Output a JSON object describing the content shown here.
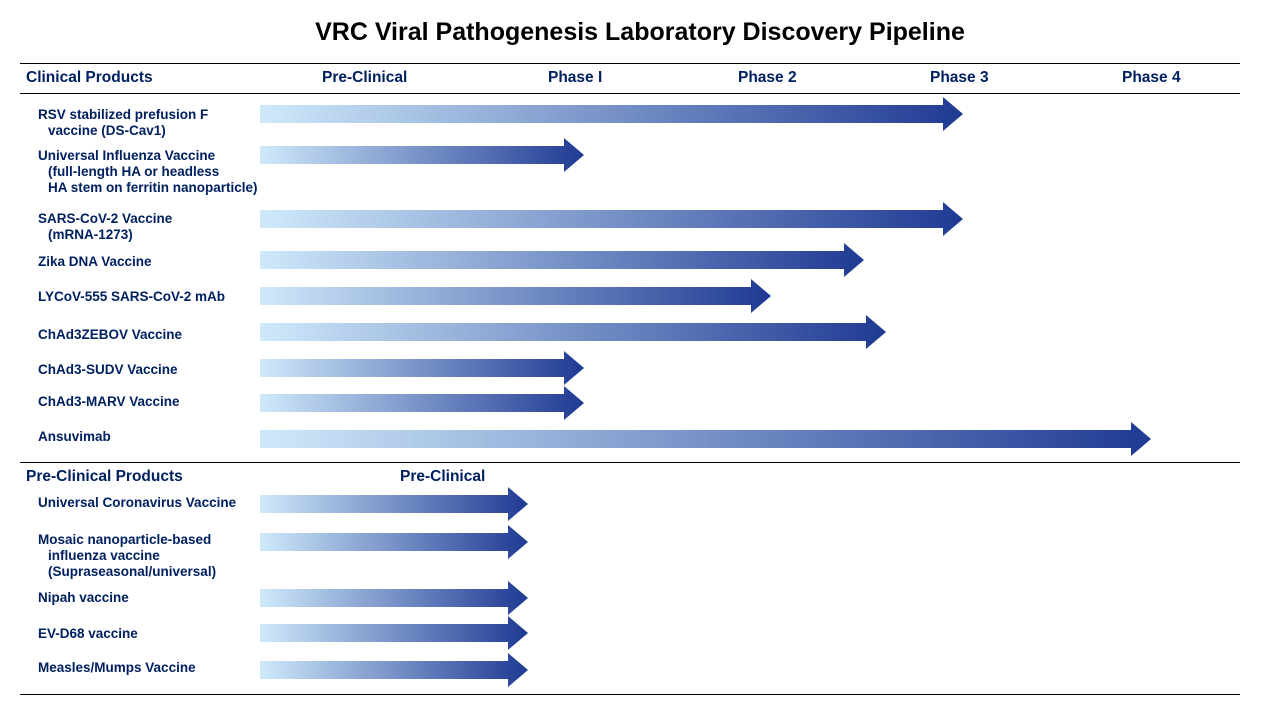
{
  "title": "VRC Viral Pathogenesis Laboratory Discovery Pipeline",
  "colors": {
    "arrow_start": "#cfe9fb",
    "arrow_end": "#1f3a93",
    "text": "#002060"
  },
  "clinical_header": {
    "products": "Clinical  Products",
    "phases": [
      "Pre-Clinical",
      "Phase  I",
      "Phase  2",
      "Phase  3",
      "Phase  4"
    ]
  },
  "clinical_products": [
    {
      "lines": [
        "RSV stabilized prefusion F",
        "vaccine (DS-Cav1)"
      ],
      "stage": "Phase 3"
    },
    {
      "lines": [
        "Universal Influenza Vaccine",
        "(full-length HA or headless",
        "HA stem on ferritin nanoparticle)"
      ],
      "stage": "Phase 1"
    },
    {
      "lines": [
        "SARS-CoV-2 Vaccine",
        "(mRNA-1273)"
      ],
      "stage": "Phase 3"
    },
    {
      "lines": [
        "Zika DNA Vaccine"
      ],
      "stage": "Phase 2"
    },
    {
      "lines": [
        "LYCoV-555 SARS-CoV-2 mAb"
      ],
      "stage": "Phase 2"
    },
    {
      "lines": [
        "ChAd3ZEBOV Vaccine"
      ],
      "stage": "Phase 2"
    },
    {
      "lines": [
        "ChAd3-SUDV Vaccine"
      ],
      "stage": "Phase 1"
    },
    {
      "lines": [
        "ChAd3-MARV  Vaccine"
      ],
      "stage": "Phase 1"
    },
    {
      "lines": [
        "Ansuvimab"
      ],
      "stage": "Phase 4"
    }
  ],
  "preclinical_header": {
    "products": "Pre-Clinical  Products",
    "phase": "Pre-Clinical"
  },
  "preclinical_products": [
    {
      "lines": [
        "Universal Coronavirus Vaccine"
      ],
      "stage": "Pre-Clinical"
    },
    {
      "lines": [
        "Mosaic nanoparticle-based",
        "influenza vaccine",
        "(Supraseasonal/universal)"
      ],
      "stage": "Pre-Clinical"
    },
    {
      "lines": [
        "Nipah vaccine"
      ],
      "stage": "Pre-Clinical"
    },
    {
      "lines": [
        "EV-D68 vaccine"
      ],
      "stage": "Pre-Clinical"
    },
    {
      "lines": [
        "Measles/Mumps Vaccine"
      ],
      "stage": "Pre-Clinical"
    }
  ]
}
